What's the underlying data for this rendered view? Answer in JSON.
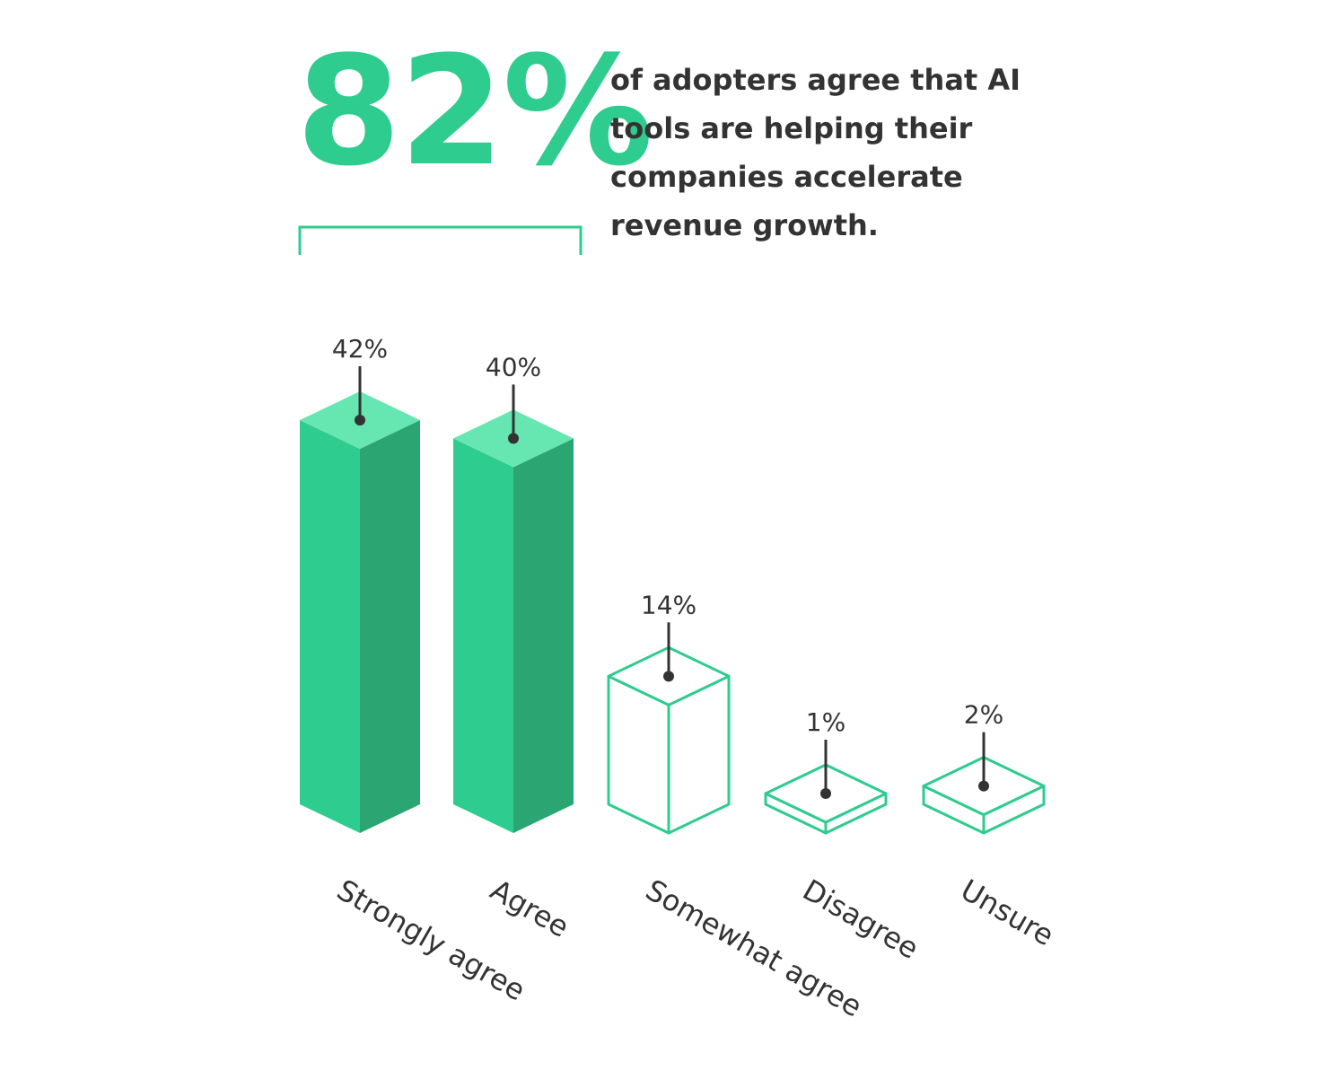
{
  "headline": {
    "number": "82%",
    "text": "of adopters agree that AI tools are helping their companies accelerate revenue growth."
  },
  "colors": {
    "accent": "#2ecc8e",
    "front": "#2ecc8e",
    "side": "#2ba672",
    "top": "#66e6b0",
    "outline": "#2ecc8e",
    "text": "#333333",
    "pointer": "#333333"
  },
  "chart_data": {
    "type": "bar",
    "categories": [
      "Strongly agree",
      "Agree",
      "Somewhat agree",
      "Disagree",
      "Unsure"
    ],
    "values": [
      42,
      40,
      14,
      1,
      2
    ],
    "value_labels": [
      "42%",
      "40%",
      "14%",
      "1%",
      "2%"
    ],
    "styles": [
      "filled",
      "filled",
      "outline",
      "outline",
      "outline"
    ],
    "bracket_groups": [
      "Strongly agree",
      "Agree"
    ],
    "bracket_label": "82%",
    "ylim": [
      0,
      42
    ],
    "grid": false,
    "legend": "none"
  }
}
